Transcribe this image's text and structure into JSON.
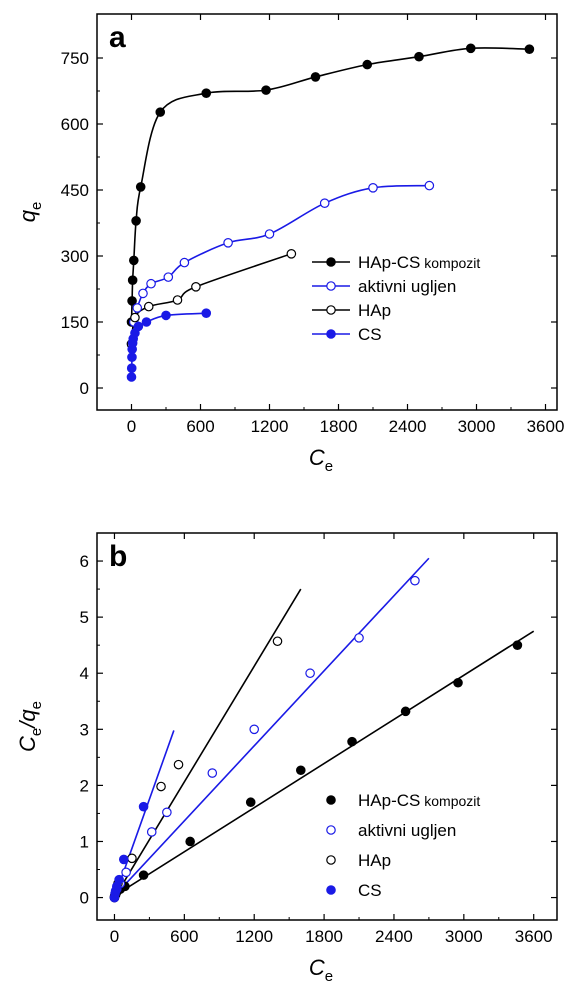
{
  "chart_data": [
    {
      "panel_label": "a",
      "type": "scatter",
      "x_axis": {
        "label": "C",
        "label_subscript": "e",
        "range": [
          -300,
          3700
        ],
        "ticks": [
          0,
          600,
          1200,
          1800,
          2400,
          3000,
          3600
        ],
        "tick_labels": [
          "0",
          "600",
          "1200",
          "1800",
          "2400",
          "3000",
          "3600"
        ]
      },
      "y_axis": {
        "label": "q",
        "label_subscript": "e",
        "range": [
          -50,
          850
        ],
        "ticks": [
          0,
          150,
          300,
          450,
          600,
          750
        ],
        "tick_labels": [
          "0",
          "150",
          "300",
          "450",
          "600",
          "750"
        ]
      },
      "legend": {
        "position": "center-right"
      },
      "series": [
        {
          "name": "HAp-CS",
          "name_suffix": "kompozit",
          "color": "#000000",
          "marker": "filled-circle",
          "line": "smooth",
          "x": [
            0,
            5,
            10,
            20,
            40,
            80,
            250,
            650,
            1170,
            1600,
            2050,
            2500,
            2950,
            3460
          ],
          "y": [
            150,
            198,
            245,
            290,
            380,
            457,
            627,
            670,
            677,
            707,
            735,
            753,
            772,
            770
          ]
        },
        {
          "name": "aktivni ugljen",
          "color": "#1a1ae6",
          "marker": "open-circle",
          "line": "smooth",
          "x": [
            0,
            20,
            50,
            100,
            170,
            320,
            460,
            840,
            1200,
            1680,
            2100,
            2590
          ],
          "y": [
            100,
            150,
            182,
            215,
            237,
            252,
            285,
            330,
            350,
            420,
            455,
            460
          ]
        },
        {
          "name": "HAp",
          "color": "#000000",
          "marker": "open-circle",
          "line": "smooth",
          "x": [
            0,
            30,
            150,
            400,
            560,
            1390
          ],
          "y": [
            100,
            160,
            185,
            200,
            230,
            305
          ]
        },
        {
          "name": "CS",
          "color": "#1a1ae6",
          "marker": "filled-circle",
          "line": "smooth",
          "x": [
            0,
            2,
            4,
            6,
            10,
            15,
            30,
            60,
            130,
            300,
            650
          ],
          "y": [
            25,
            45,
            70,
            88,
            102,
            112,
            125,
            140,
            150,
            165,
            170
          ]
        }
      ]
    },
    {
      "panel_label": "b",
      "type": "scatter",
      "x_axis": {
        "label": "C",
        "label_subscript": "e",
        "range": [
          -150,
          3800
        ],
        "ticks": [
          0,
          600,
          1200,
          1800,
          2400,
          3000,
          3600
        ],
        "tick_labels": [
          "0",
          "600",
          "1200",
          "1800",
          "2400",
          "3000",
          "3600"
        ]
      },
      "y_axis": {
        "label": "C",
        "label_subscript": "e",
        "label_middle": "/q",
        "label_subscript_2": "e",
        "range": [
          -0.4,
          6.5
        ],
        "ticks": [
          0,
          1,
          2,
          3,
          4,
          5,
          6
        ],
        "tick_labels": [
          "0",
          "1",
          "2",
          "3",
          "4",
          "5",
          "6"
        ]
      },
      "legend": {
        "position": "bottom-right"
      },
      "series": [
        {
          "name": "HAp-CS",
          "name_suffix": "kompozit",
          "color": "#000000",
          "marker": "filled-circle",
          "x": [
            0,
            10,
            20,
            50,
            90,
            250,
            650,
            1170,
            1600,
            2040,
            2500,
            2950,
            3460
          ],
          "y": [
            0.02,
            0.05,
            0.1,
            0.15,
            0.2,
            0.4,
            1.0,
            1.7,
            2.27,
            2.78,
            3.32,
            3.83,
            4.5
          ],
          "fit": {
            "x": [
              0,
              3600
            ],
            "y": [
              0.03,
              4.75
            ]
          }
        },
        {
          "name": "aktivni ugljen",
          "color": "#1a1ae6",
          "marker": "open-circle",
          "x": [
            0,
            20,
            50,
            100,
            320,
            450,
            840,
            1200,
            1680,
            2100,
            2580
          ],
          "y": [
            0.0,
            0.15,
            0.25,
            0.45,
            1.17,
            1.52,
            2.22,
            3.0,
            4.0,
            4.63,
            5.65
          ],
          "fit": {
            "x": [
              0,
              2700
            ],
            "y": [
              0.03,
              6.05
            ]
          }
        },
        {
          "name": "HAp",
          "color": "#000000",
          "marker": "open-circle",
          "x": [
            0,
            30,
            150,
            400,
            550,
            1400
          ],
          "y": [
            0.0,
            0.25,
            0.7,
            1.98,
            2.37,
            4.57
          ],
          "fit": {
            "x": [
              0,
              1600
            ],
            "y": [
              0.0,
              5.5
            ]
          }
        },
        {
          "name": "CS",
          "color": "#1a1ae6",
          "marker": "filled-circle",
          "x": [
            0,
            5,
            10,
            20,
            40,
            80,
            250
          ],
          "y": [
            0.0,
            0.07,
            0.12,
            0.2,
            0.32,
            0.68,
            1.62
          ],
          "fit": {
            "x": [
              0,
              510
            ],
            "y": [
              0.0,
              2.98
            ]
          }
        }
      ]
    }
  ]
}
